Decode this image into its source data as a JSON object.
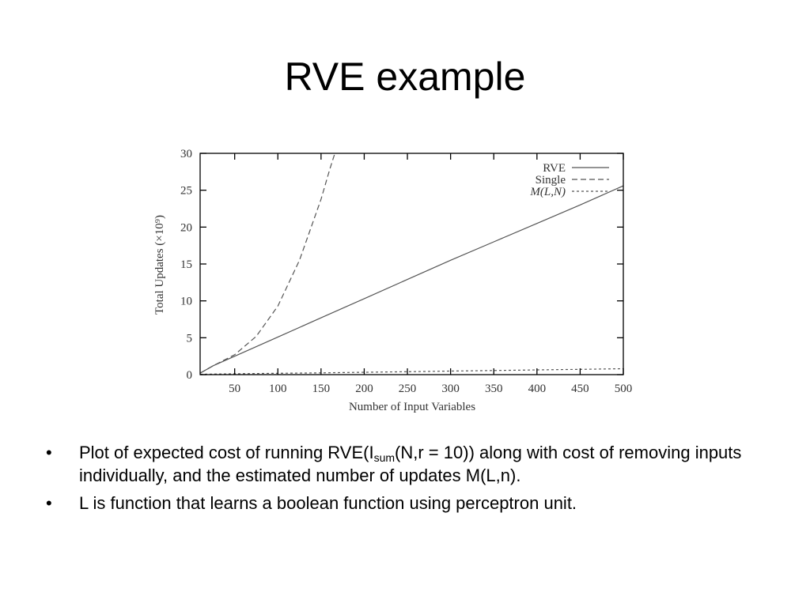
{
  "slide": {
    "title": "RVE example"
  },
  "bullets": [
    {
      "marker": "•",
      "pre": "Plot of expected cost of running RVE(I",
      "sub": "sum",
      "post": "(N,r = 10)) along with cost of removing inputs individually, and the estimated number of updates M(L,n)."
    },
    {
      "marker": "•",
      "text": "L is function that learns a boolean function using perceptron unit."
    }
  ],
  "chart_data": {
    "type": "line",
    "title": "",
    "xlabel": "Number of Input Variables",
    "ylabel": "Total Updates (×10⁹)",
    "xlim": [
      10,
      500
    ],
    "ylim": [
      0,
      30
    ],
    "xticks": [
      50,
      100,
      150,
      200,
      250,
      300,
      350,
      400,
      450,
      500
    ],
    "yticks": [
      0,
      5,
      10,
      15,
      20,
      25,
      30
    ],
    "grid": false,
    "legend_position": "top-right",
    "series": [
      {
        "name": "RVE",
        "style": "solid",
        "x": [
          10,
          25,
          50,
          100,
          150,
          200,
          250,
          300,
          350,
          400,
          450,
          500
        ],
        "y": [
          0.2,
          1.2,
          2.5,
          5.1,
          7.7,
          10.3,
          12.9,
          15.5,
          18.0,
          20.5,
          23.0,
          25.6
        ]
      },
      {
        "name": "Single",
        "style": "dashed",
        "x": [
          10,
          25,
          50,
          75,
          100,
          125,
          150,
          160,
          166
        ],
        "y": [
          0.2,
          1.2,
          2.7,
          5.2,
          9.3,
          15.5,
          23.8,
          27.8,
          30.0
        ]
      },
      {
        "name": "M(L,N)",
        "style": "dotted",
        "x": [
          10,
          50,
          100,
          150,
          200,
          250,
          300,
          350,
          400,
          450,
          500
        ],
        "y": [
          0.05,
          0.12,
          0.18,
          0.24,
          0.32,
          0.4,
          0.48,
          0.56,
          0.64,
          0.72,
          0.8
        ]
      }
    ]
  },
  "colors": {
    "axis": "#000000",
    "series": "#555555",
    "text": "#333333"
  }
}
